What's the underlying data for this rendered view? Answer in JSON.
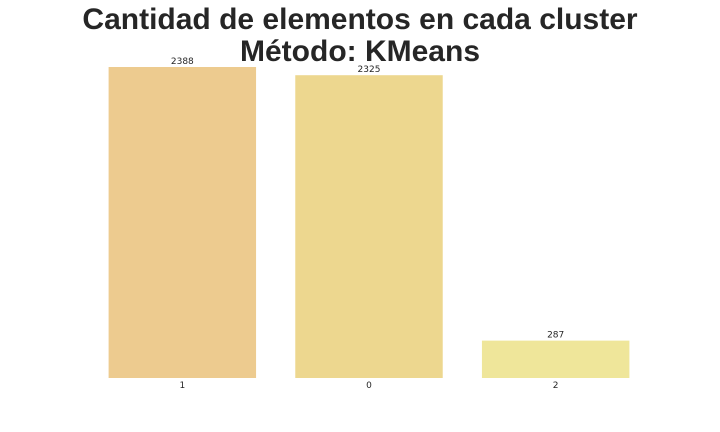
{
  "chart_data": {
    "type": "bar",
    "title": "Cantidad de elementos en cada cluster\nMétodo: KMeans",
    "xlabel": "",
    "ylabel": "",
    "categories": [
      "1",
      "0",
      "2"
    ],
    "values": [
      2388,
      2325,
      287
    ],
    "colors": [
      "#edcb8f",
      "#edd78f",
      "#efe69a"
    ],
    "ylim": [
      0,
      2388
    ],
    "grid": false,
    "legend": "none"
  }
}
